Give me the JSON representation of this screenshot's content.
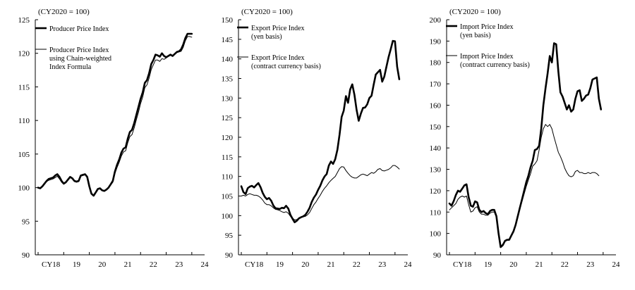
{
  "chart_data": [
    {
      "type": "line",
      "unit_label": "(CY2020 = 100)",
      "x_tick_labels": [
        "CY18",
        "19",
        "20",
        "21",
        "22",
        "23",
        "24"
      ],
      "y_ticks": [
        90,
        95,
        100,
        105,
        110,
        115,
        120,
        125
      ],
      "ylim": [
        90,
        125
      ],
      "x_start": "2018-01",
      "legend_position": "top-left",
      "series": [
        {
          "name_lines": [
            "Producer Price Index"
          ],
          "style": "thick",
          "color": "#000000",
          "values": [
            100.0,
            99.9,
            100.2,
            100.6,
            101.0,
            101.3,
            101.4,
            101.5,
            101.8,
            102.0,
            101.6,
            101.0,
            100.6,
            100.8,
            101.2,
            101.6,
            101.4,
            101.0,
            100.9,
            101.0,
            101.8,
            101.9,
            102.0,
            101.6,
            100.2,
            99.1,
            98.8,
            99.3,
            99.8,
            99.9,
            99.6,
            99.5,
            99.7,
            100.0,
            100.5,
            101.0,
            102.4,
            103.4,
            104.2,
            105.2,
            105.8,
            106.0,
            107.3,
            108.3,
            108.6,
            109.6,
            110.8,
            112.0,
            113.2,
            114.2,
            115.6,
            116.0,
            117.0,
            118.4,
            119.0,
            119.8,
            119.7,
            119.5,
            120.0,
            119.6,
            119.4,
            119.6,
            119.8,
            119.6,
            119.9,
            120.2,
            120.3,
            120.6,
            121.3,
            122.3,
            122.9,
            122.9,
            122.9
          ]
        },
        {
          "name_lines": [
            "Producer Price Index",
            "using Chain-weighted",
            "Index Formula"
          ],
          "style": "thin",
          "color": "#000000",
          "values": [
            100.0,
            99.9,
            100.2,
            100.5,
            100.9,
            101.1,
            101.2,
            101.3,
            101.5,
            101.7,
            101.3,
            100.8,
            100.5,
            100.7,
            101.1,
            101.5,
            101.3,
            100.9,
            100.8,
            100.9,
            101.7,
            101.8,
            101.9,
            101.5,
            100.1,
            99.1,
            98.8,
            99.3,
            99.8,
            99.9,
            99.6,
            99.5,
            99.7,
            99.9,
            100.4,
            100.8,
            102.1,
            103.0,
            103.8,
            104.7,
            105.3,
            105.5,
            106.7,
            107.6,
            107.9,
            108.9,
            110.1,
            111.2,
            112.5,
            113.5,
            114.9,
            115.3,
            116.3,
            117.6,
            118.3,
            119.0,
            119.0,
            118.8,
            119.2,
            119.1,
            119.3,
            119.6,
            119.7,
            119.7,
            119.9,
            120.1,
            120.2,
            120.3,
            120.9,
            121.9,
            122.5,
            122.5,
            122.4
          ]
        }
      ]
    },
    {
      "type": "line",
      "unit_label": "(CY2020 = 100)",
      "x_tick_labels": [
        "CY18",
        "19",
        "20",
        "21",
        "22",
        "23",
        "24"
      ],
      "y_ticks": [
        90,
        95,
        100,
        105,
        110,
        115,
        120,
        125,
        130,
        135,
        140,
        145,
        150
      ],
      "ylim": [
        90,
        150
      ],
      "x_start": "2018-01",
      "legend_position": "top-left",
      "series": [
        {
          "name_lines": [
            "Export Price Index",
            "(yen basis)"
          ],
          "style": "thick",
          "color": "#000000",
          "values": [
            107.5,
            106.0,
            105.5,
            107.0,
            107.4,
            107.6,
            107.2,
            107.8,
            108.3,
            107.3,
            105.8,
            104.8,
            104.2,
            104.5,
            103.8,
            102.6,
            101.9,
            101.8,
            101.7,
            102.0,
            101.9,
            102.5,
            101.8,
            100.2,
            99.2,
            98.3,
            98.7,
            99.3,
            99.6,
            99.8,
            100.2,
            101.0,
            102.0,
            103.5,
            104.6,
            105.4,
            106.6,
            107.6,
            109.0,
            110.0,
            110.6,
            112.8,
            113.8,
            113.2,
            114.4,
            116.8,
            120.6,
            125.2,
            126.8,
            130.5,
            128.8,
            132.2,
            133.5,
            130.8,
            127.0,
            124.2,
            126.0,
            127.5,
            127.6,
            128.4,
            130.0,
            130.6,
            133.4,
            136.0,
            136.6,
            137.2,
            134.2,
            135.5,
            138.0,
            140.5,
            142.5,
            144.6,
            144.5,
            138.0,
            134.8
          ]
        },
        {
          "name_lines": [
            "Export Price Index",
            "(contract currency basis)"
          ],
          "style": "thin",
          "color": "#000000",
          "values": [
            105.0,
            105.2,
            105.0,
            105.4,
            105.6,
            105.4,
            105.2,
            105.2,
            105.0,
            104.6,
            104.0,
            103.2,
            102.8,
            102.8,
            102.5,
            102.0,
            101.6,
            101.5,
            101.3,
            101.0,
            100.8,
            101.0,
            100.6,
            99.8,
            99.4,
            98.9,
            99.0,
            99.4,
            99.5,
            99.7,
            99.8,
            100.2,
            100.8,
            101.8,
            102.8,
            103.5,
            104.4,
            105.2,
            106.2,
            107.0,
            107.6,
            108.4,
            109.0,
            109.5,
            110.0,
            111.0,
            112.0,
            112.5,
            112.4,
            111.5,
            110.8,
            110.2,
            109.8,
            109.6,
            109.6,
            110.0,
            110.4,
            110.6,
            110.4,
            110.2,
            110.6,
            111.0,
            110.8,
            111.2,
            111.8,
            112.0,
            111.5,
            111.4,
            111.6,
            111.8,
            112.2,
            112.8,
            112.8,
            112.4,
            111.9
          ]
        }
      ]
    },
    {
      "type": "line",
      "unit_label": "(CY2020 = 100)",
      "x_tick_labels": [
        "CY18",
        "19",
        "20",
        "21",
        "22",
        "23",
        "24"
      ],
      "y_ticks": [
        90,
        100,
        110,
        120,
        130,
        140,
        150,
        160,
        170,
        180,
        190,
        200
      ],
      "ylim": [
        90,
        200
      ],
      "x_start": "2018-01",
      "legend_position": "top-left",
      "series": [
        {
          "name_lines": [
            "Import Price Index",
            "(yen basis)"
          ],
          "style": "thick",
          "color": "#000000",
          "values": [
            114.0,
            113.0,
            115.2,
            118.0,
            120.0,
            119.5,
            121.0,
            122.5,
            123.0,
            117.0,
            113.0,
            112.5,
            115.0,
            114.5,
            111.0,
            110.0,
            110.5,
            109.5,
            109.0,
            110.5,
            111.0,
            111.0,
            108.0,
            100.0,
            93.6,
            94.5,
            96.5,
            97.0,
            97.0,
            99.0,
            101.0,
            104.0,
            108.0,
            112.0,
            116.0,
            120.0,
            124.0,
            127.0,
            131.0,
            134.0,
            139.0,
            139.5,
            141.0,
            149.0,
            160.0,
            168.0,
            175.0,
            183.0,
            180.0,
            189.0,
            188.5,
            176.0,
            166.0,
            164.0,
            161.0,
            158.0,
            160.0,
            157.0,
            158.0,
            163.0,
            166.5,
            167.0,
            162.0,
            163.0,
            164.5,
            165.0,
            168.0,
            172.0,
            172.5,
            173.0,
            163.0,
            158.0
          ]
        },
        {
          "name_lines": [
            "Import Price Index",
            "(contract currency basis)"
          ],
          "style": "thin",
          "color": "#000000",
          "values": [
            111.0,
            112.0,
            113.0,
            114.0,
            116.0,
            117.0,
            117.5,
            117.0,
            117.5,
            113.5,
            110.0,
            110.5,
            112.0,
            112.5,
            110.0,
            109.0,
            109.0,
            108.5,
            108.5,
            109.5,
            110.0,
            110.0,
            107.5,
            100.5,
            94.0,
            95.0,
            96.8,
            97.0,
            97.2,
            98.8,
            100.8,
            103.5,
            107.5,
            111.5,
            115.0,
            118.5,
            122.0,
            125.0,
            128.0,
            131.5,
            132.5,
            134.0,
            139.0,
            145.0,
            149.0,
            151.0,
            150.0,
            151.0,
            149.0,
            145.0,
            141.5,
            138.0,
            136.0,
            133.5,
            130.5,
            128.5,
            127.0,
            126.5,
            127.0,
            129.0,
            129.5,
            128.5,
            128.5,
            128.0,
            128.0,
            128.5,
            128.0,
            128.5,
            128.5,
            128.0,
            127.0
          ]
        }
      ]
    }
  ]
}
